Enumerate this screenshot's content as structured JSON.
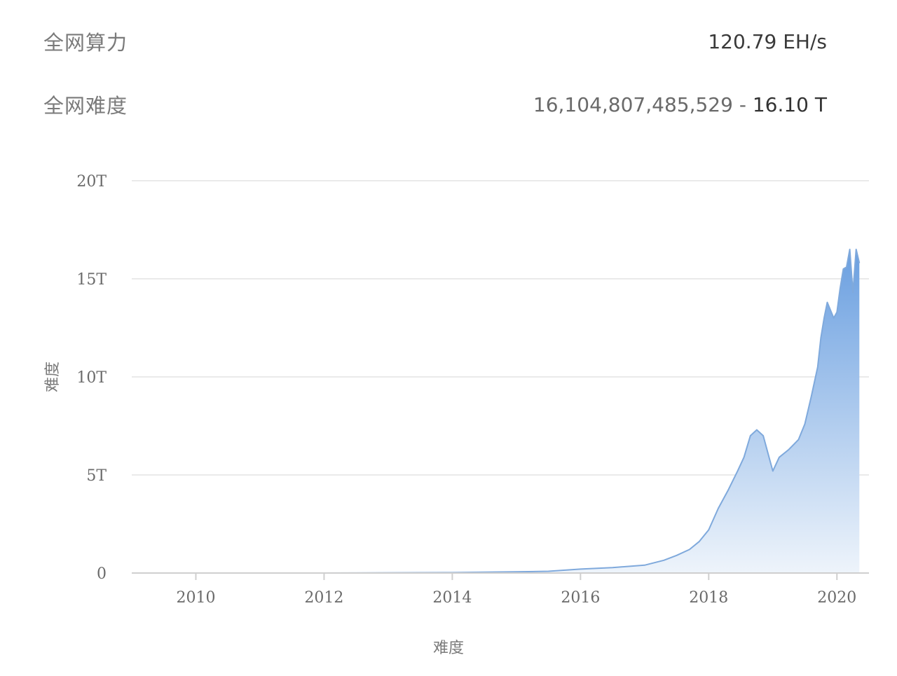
{
  "stats": {
    "hashrate_label": "全网算力",
    "hashrate_value": "120.79 EH/s",
    "difficulty_label": "全网难度",
    "difficulty_raw": "16,104,807,485,529",
    "difficulty_sep": " - ",
    "difficulty_short": "16.10 T"
  },
  "colors": {
    "line": "#7fa9dc",
    "fill_top": "#6a9fe0",
    "fill_bottom": "#eef4fb",
    "grid": "#e4e4e4",
    "axis": "#cfcfcf"
  },
  "chart_data": {
    "type": "area",
    "title": "",
    "xlabel": "难度",
    "ylabel": "难度",
    "xlim": [
      2009.0,
      2020.5
    ],
    "ylim": [
      0,
      20
    ],
    "x_ticks": [
      2010,
      2012,
      2014,
      2016,
      2018,
      2020
    ],
    "x_tick_labels": [
      "2010",
      "2012",
      "2014",
      "2016",
      "2018",
      "2020"
    ],
    "y_ticks": [
      0,
      5,
      10,
      15,
      20
    ],
    "y_tick_labels": [
      "0",
      "5T",
      "10T",
      "15T",
      "20T"
    ],
    "grid": true,
    "legend": "none",
    "series": [
      {
        "x": [
          2009.0,
          2012.0,
          2014.0,
          2015.0,
          2015.5,
          2016.0,
          2016.5,
          2017.0,
          2017.3,
          2017.5,
          2017.7,
          2017.85,
          2018.0,
          2018.15,
          2018.3,
          2018.45,
          2018.55,
          2018.65,
          2018.75,
          2018.85,
          2018.95,
          2019.0,
          2019.1,
          2019.25,
          2019.4,
          2019.5,
          2019.6,
          2019.7,
          2019.75,
          2019.8,
          2019.85,
          2019.95,
          2020.0,
          2020.05,
          2020.1,
          2020.15,
          2020.2,
          2020.25,
          2020.3,
          2020.35
        ],
        "values": [
          0,
          0,
          0.02,
          0.06,
          0.09,
          0.2,
          0.28,
          0.4,
          0.65,
          0.9,
          1.2,
          1.6,
          2.2,
          3.3,
          4.2,
          5.2,
          5.9,
          7.0,
          7.3,
          7.0,
          5.8,
          5.2,
          5.9,
          6.3,
          6.8,
          7.6,
          9.0,
          10.5,
          12.0,
          13.0,
          13.8,
          13.0,
          13.3,
          14.5,
          15.5,
          15.6,
          16.5,
          14.3,
          16.5,
          15.8
        ]
      }
    ]
  }
}
